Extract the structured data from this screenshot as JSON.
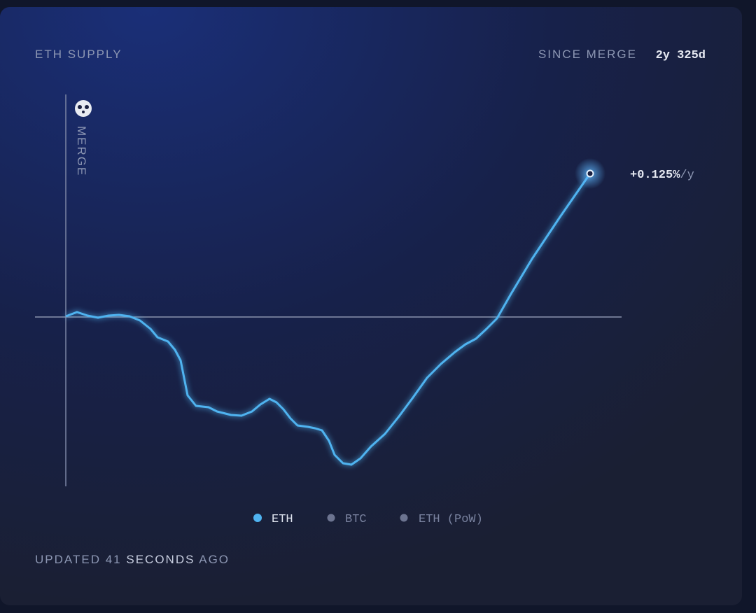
{
  "header": {
    "title": "ETH SUPPLY",
    "since_label": "SINCE MERGE",
    "since_value": "2y 325d"
  },
  "chart": {
    "merge_label": "MERGE",
    "rate": "+0.125%",
    "rate_unit": "/y"
  },
  "legend": [
    "ETH",
    "BTC",
    "ETH (PoW)"
  ],
  "footer": {
    "prefix": "UPDATED",
    "count": "41",
    "unit": "SECONDS",
    "suffix": "AGO"
  }
}
